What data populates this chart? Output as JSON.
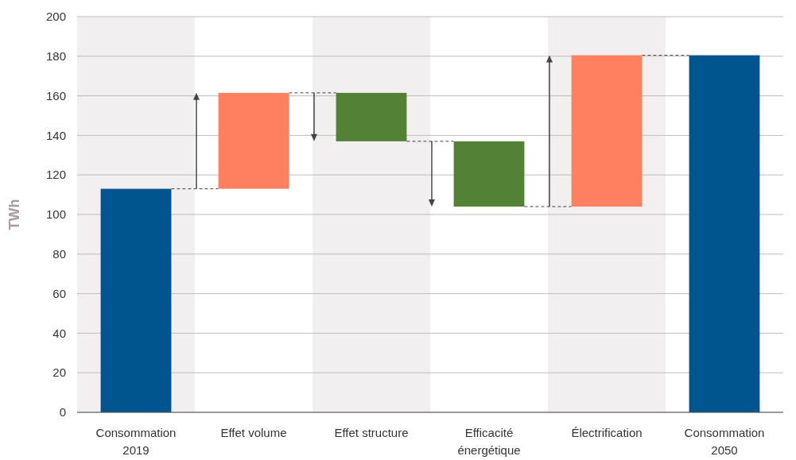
{
  "chart_data": {
    "type": "bar",
    "ylabel": "TWh",
    "categories": [
      "Consommation 2019",
      "Effet volume",
      "Effet structure",
      "Efficacité énergétique",
      "Électrification",
      "Consommation 2050"
    ],
    "values": [
      113,
      48.5,
      -24.5,
      -33,
      76.5,
      180.5
    ],
    "base": [
      0,
      113,
      161.5,
      137,
      104,
      0
    ],
    "colors": [
      "#00558f",
      "#ff8060",
      "#538135",
      "#538135",
      "#ff8060",
      "#00558f"
    ],
    "ylim": [
      0,
      200
    ],
    "yticks": [
      0,
      20,
      40,
      60,
      80,
      100,
      120,
      140,
      160,
      180,
      200
    ],
    "grid": "y",
    "bands": [
      {
        "axis": "x",
        "from": "Consommation 2019",
        "to": "Consommation 2019",
        "color": "#f1eff0"
      },
      {
        "axis": "x",
        "from": "Effet structure",
        "to": "Effet structure",
        "color": "#f1eff0"
      },
      {
        "axis": "x",
        "from": "Électrification",
        "to": "Électrification",
        "color": "#f1eff0"
      }
    ]
  }
}
